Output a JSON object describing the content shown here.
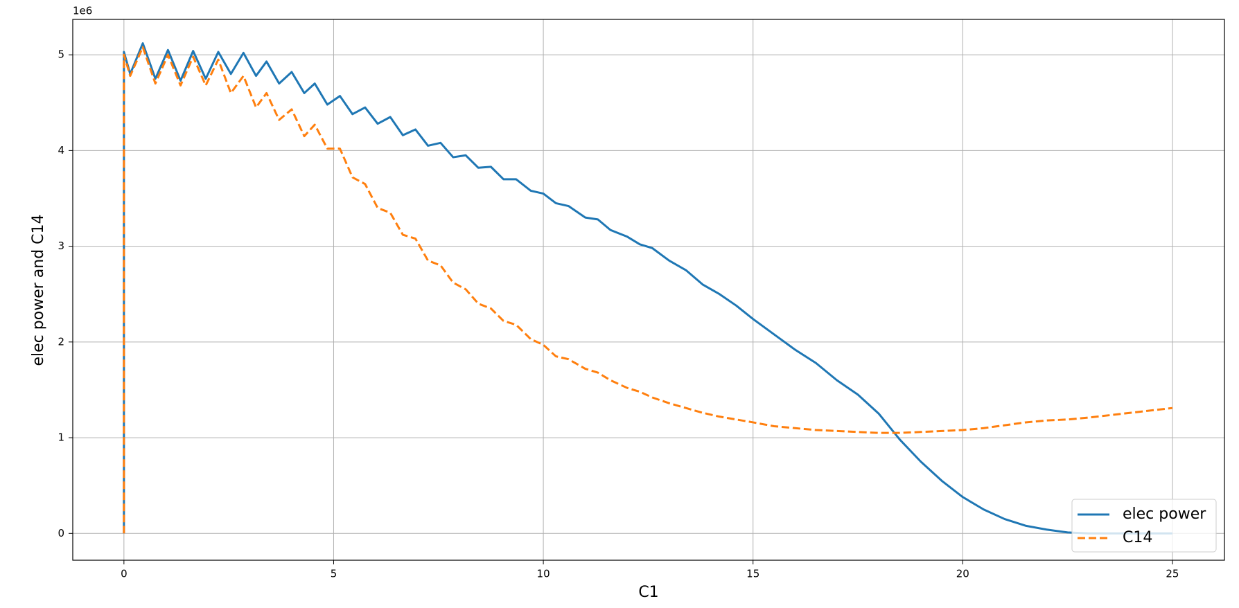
{
  "chart_data": {
    "type": "line",
    "xlabel": "C1",
    "ylabel": "elec power and C14",
    "y_offset_label": "1e6",
    "x": [
      0,
      0,
      0.15,
      0.45,
      0.75,
      1.05,
      1.35,
      1.65,
      1.95,
      2.25,
      2.55,
      2.85,
      3.15,
      3.4,
      3.7,
      4.0,
      4.3,
      4.55,
      4.85,
      5.15,
      5.45,
      5.75,
      6.05,
      6.35,
      6.65,
      6.95,
      7.25,
      7.55,
      7.85,
      8.15,
      8.45,
      8.75,
      9.05,
      9.35,
      9.7,
      10,
      10.3,
      10.6,
      11,
      11.3,
      11.6,
      12,
      12.3,
      12.6,
      13,
      13.4,
      13.8,
      14.2,
      14.6,
      15,
      15.5,
      16,
      16.5,
      17,
      17.5,
      18,
      18.5,
      19,
      19.5,
      20,
      20.5,
      21,
      21.5,
      22,
      22.5,
      23,
      24,
      25
    ],
    "series": [
      {
        "name": "elec power",
        "color": "#1f77b4",
        "linestyle": "solid",
        "values": [
          0,
          5030000,
          4800000,
          5120000,
          4750000,
          5050000,
          4730000,
          5040000,
          4750000,
          5030000,
          4800000,
          5020000,
          4780000,
          4930000,
          4700000,
          4820000,
          4600000,
          4700000,
          4480000,
          4570000,
          4380000,
          4450000,
          4280000,
          4350000,
          4160000,
          4220000,
          4050000,
          4080000,
          3930000,
          3950000,
          3820000,
          3830000,
          3700000,
          3700000,
          3580000,
          3550000,
          3450000,
          3420000,
          3300000,
          3280000,
          3170000,
          3100000,
          3020000,
          2980000,
          2850000,
          2750000,
          2600000,
          2500000,
          2380000,
          2240000,
          2080000,
          1920000,
          1780000,
          1600000,
          1450000,
          1250000,
          980000,
          750000,
          550000,
          380000,
          250000,
          150000,
          80000,
          40000,
          10000,
          0,
          0,
          0
        ]
      },
      {
        "name": "C14",
        "color": "#ff7f0e",
        "linestyle": "dashed",
        "values": [
          0,
          5000000,
          4780000,
          5080000,
          4700000,
          5000000,
          4680000,
          4980000,
          4680000,
          4950000,
          4600000,
          4780000,
          4450000,
          4600000,
          4320000,
          4430000,
          4150000,
          4270000,
          4020000,
          4020000,
          3720000,
          3650000,
          3400000,
          3350000,
          3120000,
          3080000,
          2850000,
          2800000,
          2620000,
          2550000,
          2400000,
          2350000,
          2220000,
          2180000,
          2030000,
          1970000,
          1850000,
          1820000,
          1720000,
          1680000,
          1600000,
          1520000,
          1480000,
          1420000,
          1360000,
          1310000,
          1260000,
          1220000,
          1190000,
          1160000,
          1120000,
          1100000,
          1080000,
          1070000,
          1060000,
          1050000,
          1050000,
          1060000,
          1070000,
          1080000,
          1100000,
          1130000,
          1160000,
          1180000,
          1190000,
          1210000,
          1260000,
          1310000
        ]
      }
    ],
    "xlim": [
      -1.22,
      26.24
    ],
    "ylim": [
      -280000,
      5370000
    ],
    "xticks": [
      0,
      5,
      10,
      15,
      20,
      25
    ],
    "yticks": [
      {
        "value": 0,
        "label": "0"
      },
      {
        "value": 1000000,
        "label": "1"
      },
      {
        "value": 2000000,
        "label": "2"
      },
      {
        "value": 3000000,
        "label": "3"
      },
      {
        "value": 4000000,
        "label": "4"
      },
      {
        "value": 5000000,
        "label": "5"
      }
    ],
    "grid": true,
    "legend": "lower right"
  }
}
